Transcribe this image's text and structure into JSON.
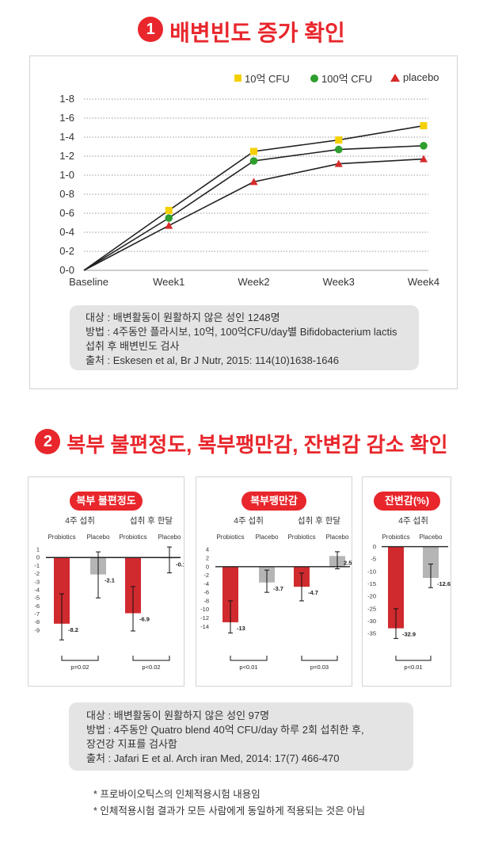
{
  "section1": {
    "number": "1",
    "title": "배변빈도 증가 확인"
  },
  "section2": {
    "number": "2",
    "title": "복부 불편정도, 복부팽만감, 잔변감 감소 확인"
  },
  "chart1": {
    "legend": [
      "10억 CFU",
      "100억 CFU",
      "placebo"
    ],
    "info": [
      "대상 : 배변활동이 원활하지 않은 성인 1248명",
      "방법 : 4주동안 플라시보, 10억, 100억CFU/day별 Bifidobacterium lactis",
      "섭취 후 배변빈도 검사",
      "출처 : Eskesen et al, Br J Nutr, 2015: 114(10)1638-1646"
    ]
  },
  "chart2": {
    "info": [
      "대상 : 배변활동이 원활하지 않은 성인 97명",
      "방법 : 4주동안 Quatro blend 40억 CFU/day 하루 2회 섭취한 후,",
      "장건강 지표를 검사함",
      "출처 : Jafari E et al. Arch iran Med, 2014: 17(7) 466-470"
    ]
  },
  "footnotes": [
    "* 프로바이오틱스의 인체적용시험 내용임",
    "* 인체적용시험 결과가 모든 사람에게 동일하게 적용되는 것은 아님"
  ],
  "colors": {
    "accent": "#e8262c",
    "yellow": "#f5d000",
    "green": "#2e9e2e",
    "red_triangle": "#d62a2a",
    "bar_red": "#d02a2f",
    "bar_gray": "#b5b5b5"
  },
  "chart_data": [
    {
      "type": "line",
      "categories": [
        "Baseline",
        "Week1",
        "Week2",
        "Week3",
        "Week4"
      ],
      "y_tick_labels": [
        "0-0",
        "0-2",
        "0-4",
        "0-6",
        "0-8",
        "1-0",
        "1-2",
        "1-4",
        "1-6",
        "1-8"
      ],
      "ylim": [
        0,
        1.8
      ],
      "grid": true,
      "legend_position": "top-right",
      "series": [
        {
          "name": "10억 CFU",
          "marker": "square",
          "color": "#f5d000",
          "values": [
            0,
            0.63,
            1.25,
            1.37,
            1.52
          ]
        },
        {
          "name": "100억 CFU",
          "marker": "circle",
          "color": "#2e9e2e",
          "values": [
            0,
            0.55,
            1.15,
            1.27,
            1.31
          ]
        },
        {
          "name": "placebo",
          "marker": "triangle",
          "color": "#d62a2a",
          "values": [
            0,
            0.47,
            0.93,
            1.12,
            1.17
          ]
        }
      ]
    },
    {
      "type": "bar",
      "title": "복부 불편정도",
      "groups": [
        "4주 섭취",
        "섭취 후 한달"
      ],
      "categories": [
        "Probiotics",
        "Placebo",
        "Probiotics",
        "Placebo"
      ],
      "values": [
        -8.2,
        -2.1,
        -6.9,
        -0.1
      ],
      "value_labels": [
        "-8.2",
        "-2.1",
        "-6.9",
        "-0.1"
      ],
      "error_low": [
        -10.2,
        -5.0,
        -9.1,
        -1.9
      ],
      "error_high": [
        -4.5,
        0.7,
        -3.6,
        1.3
      ],
      "y_ticks": [
        1,
        0,
        -1,
        -2,
        -3,
        -4,
        -5,
        -6,
        -7,
        -8,
        -9
      ],
      "ylim": [
        -9.5,
        1.3
      ],
      "p_values": [
        "p=0.02",
        "p<0.02"
      ]
    },
    {
      "type": "bar",
      "title": "복부팽만감",
      "groups": [
        "4주 섭취",
        "섭취 후 한달"
      ],
      "categories": [
        "Probiotics",
        "Placebo",
        "Probiotics",
        "Placebo"
      ],
      "values": [
        -13,
        -3.7,
        -4.7,
        2.5
      ],
      "value_labels": [
        "-13",
        "-3.7",
        "-4.7",
        "2.5"
      ],
      "error_low": [
        -15.5,
        -6.0,
        -8.0,
        -0.5
      ],
      "error_high": [
        -8.0,
        -0.8,
        -1.5,
        3.5
      ],
      "y_ticks": [
        4,
        2,
        0,
        -2,
        -4,
        -6,
        -8,
        -10,
        -12,
        -14
      ],
      "ylim": [
        -15.8,
        4.6
      ],
      "p_values": [
        "p<0.01",
        "p=0.03"
      ]
    },
    {
      "type": "bar",
      "title": "잔변감(%)",
      "groups": [
        "4주 섭취"
      ],
      "categories": [
        "Probiotics",
        "Placebo"
      ],
      "values": [
        -32.9,
        -12.6
      ],
      "value_labels": [
        "-32.9",
        "-12.6"
      ],
      "error_low": [
        -37.0,
        -16.5
      ],
      "error_high": [
        -25.0,
        -7.0
      ],
      "y_ticks": [
        0,
        -5,
        -10,
        -15,
        -20,
        -25,
        -30,
        -35
      ],
      "ylim": [
        -37.2,
        0.5
      ],
      "p_values": [
        "p<0.01"
      ]
    }
  ]
}
